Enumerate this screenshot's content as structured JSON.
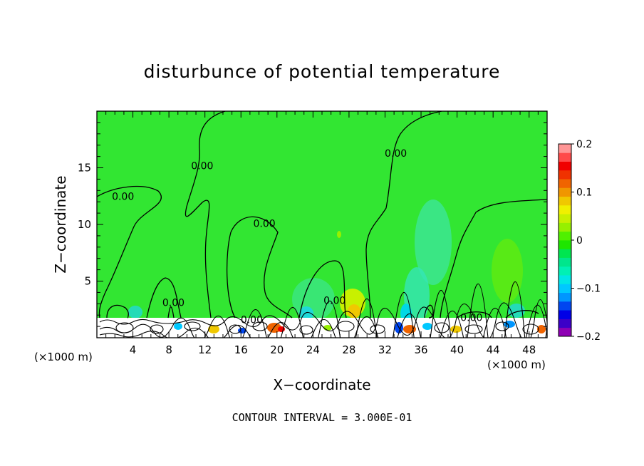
{
  "chart_data": {
    "type": "heatmap",
    "title": "disturbunce of potential temperature",
    "xlabel": "X−coordinate",
    "ylabel": "Z−coordinate",
    "x_unit": "(×1000 m)",
    "x_ticks": [
      4,
      8,
      12,
      16,
      20,
      24,
      28,
      32,
      36,
      40,
      44,
      48
    ],
    "y_ticks": [
      5,
      10,
      15
    ],
    "xlim": [
      0,
      50
    ],
    "ylim": [
      0,
      20
    ],
    "contour_label": "0.00",
    "contour_label_positions": [
      [
        2.9,
        12.5
      ],
      [
        11.7,
        15.2
      ],
      [
        18.6,
        10.1
      ],
      [
        8.5,
        3.1
      ],
      [
        17.2,
        1.6
      ],
      [
        26.4,
        3.3
      ],
      [
        33.2,
        16.3
      ],
      [
        41.6,
        1.8
      ]
    ],
    "colorbar": {
      "ticks": [
        0.2,
        0.1,
        0,
        -0.1,
        -0.2
      ],
      "tick_labels": [
        "0.2",
        "0.1",
        "0",
        "−0.1",
        "−0.2"
      ],
      "range": [
        -0.2,
        0.2
      ],
      "colors": [
        "#8e00b4",
        "#3c00c8",
        "#0000e6",
        "#0046f0",
        "#0096ff",
        "#00c8ff",
        "#00e6e6",
        "#00f0b4",
        "#00e68c",
        "#00e650",
        "#1ee600",
        "#50f000",
        "#96f000",
        "#c8f000",
        "#f0f000",
        "#f0c800",
        "#f09600",
        "#f06400",
        "#f03200",
        "#f00000",
        "#ff4a4a",
        "#ff9696"
      ]
    },
    "background_value": 0,
    "background_color": "#32e632"
  },
  "footer": "CONTOUR INTERVAL = 3.000E-01"
}
